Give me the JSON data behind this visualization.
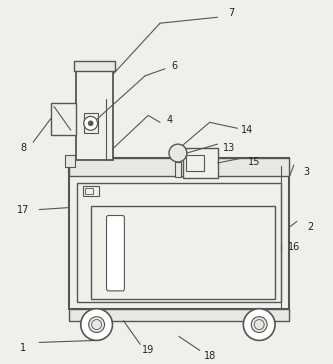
{
  "bg_color": "#f0f0eb",
  "line_color": "#555555",
  "label_color": "#222222",
  "body_fill": "#e8e8e3",
  "white": "#ffffff"
}
